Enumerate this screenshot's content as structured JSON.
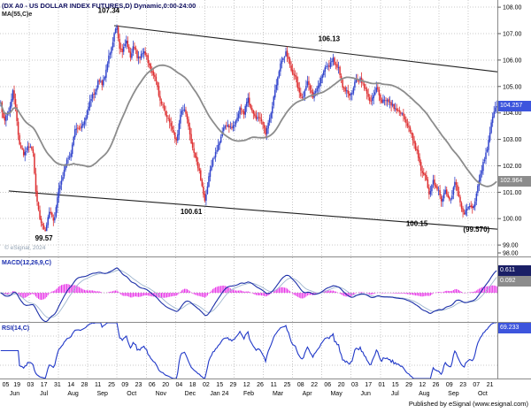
{
  "window": {
    "title": "(DX A0 - US DOLLAR INDEX FUTURES,D) Dynamic,0:00-24:00",
    "ma_label": "MA(55,C)e",
    "copyright": "© eSignal, 2024",
    "footer": "Published by eSignal (www.esignal.com)"
  },
  "panels": {
    "macd_label": "MACD(12,26,9,C)",
    "rsi_label": "RSI(14,C)"
  },
  "tags": {
    "last_price": "104.257",
    "ma_value": "102.964",
    "macd_value": "0.611",
    "macd_signal_value": "0.092",
    "rsi_value": "69.233"
  },
  "colors": {
    "up": "#3144cc",
    "down": "#de3032",
    "ma": "#8c8c8c",
    "trendline": "#222222",
    "grid": "#c8c8c8",
    "separator": "#8a8a8a",
    "macd_line": "#1c2fa8",
    "macd_signal": "#9fb6cf",
    "macd_hist": "#e832e8",
    "rsi": "#2038c8",
    "tag_price_bg": "#3d55dd",
    "tag_ma_bg": "#8c8c8c",
    "tag_macd_bg": "#1a1f66",
    "tag_signal_bg": "#8c8c8c",
    "tag_rsi_bg": "#3d55dd"
  },
  "chart_data": {
    "type": "candlestick",
    "symbol": "DX A0 - US DOLLAR INDEX FUTURES",
    "timeframe": "D",
    "session": "Dynamic,0:00-24:00",
    "ylim": [
      98.57,
      108.27
    ],
    "days_total": 368,
    "price_axis_ticks": [
      "108.00",
      "107.00",
      "106.00",
      "105.00",
      "104.00",
      "103.00",
      "102.00",
      "101.00",
      "100.00",
      "99.00",
      "98.00"
    ],
    "date_ticks": [
      "05",
      "19",
      "03",
      "17",
      "31",
      "14",
      "28",
      "11",
      "25",
      "09",
      "23",
      "06",
      "20",
      "04",
      "18",
      "02",
      "15",
      "29",
      "12",
      "26",
      "11",
      "25",
      "08",
      "22",
      "06",
      "20",
      "03",
      "17",
      "01",
      "15",
      "29",
      "12",
      "26",
      "09",
      "23",
      "07",
      "21"
    ],
    "month_labels": [
      "Jun",
      "Jul",
      "Aug",
      "Sep",
      "Oct",
      "Nov",
      "Dec",
      "Jan 24",
      "Feb",
      "Mar",
      "Apr",
      "May",
      "Jun",
      "Jul",
      "Aug",
      "Sep",
      "Oct"
    ],
    "price_path": [
      [
        0,
        104.3
      ],
      [
        3,
        103.7
      ],
      [
        6,
        104.1
      ],
      [
        9,
        104.8
      ],
      [
        13,
        103.2
      ],
      [
        17,
        102.3
      ],
      [
        20,
        102.9
      ],
      [
        24,
        102.4
      ],
      [
        26,
        101.0
      ],
      [
        29,
        100.1
      ],
      [
        33,
        99.6
      ],
      [
        36,
        100.4
      ],
      [
        39,
        100.0
      ],
      [
        43,
        101.0
      ],
      [
        47,
        101.8
      ],
      [
        51,
        102.4
      ],
      [
        55,
        103.3
      ],
      [
        59,
        103.5
      ],
      [
        63,
        104.0
      ],
      [
        65,
        104.3
      ],
      [
        69,
        104.8
      ],
      [
        72,
        105.3
      ],
      [
        75,
        105.0
      ],
      [
        79,
        105.8
      ],
      [
        82,
        106.5
      ],
      [
        86,
        107.3
      ],
      [
        88,
        106.6
      ],
      [
        90,
        106.4
      ],
      [
        93,
        106.9
      ],
      [
        96,
        106.2
      ],
      [
        98,
        106.6
      ],
      [
        101,
        106.0
      ],
      [
        105,
        106.4
      ],
      [
        108,
        106.1
      ],
      [
        111,
        105.8
      ],
      [
        115,
        105.0
      ],
      [
        118,
        104.5
      ],
      [
        121,
        104.2
      ],
      [
        124,
        103.8
      ],
      [
        126,
        103.5
      ],
      [
        130,
        103.1
      ],
      [
        133,
        103.9
      ],
      [
        136,
        104.2
      ],
      [
        139,
        103.6
      ],
      [
        141,
        103.0
      ],
      [
        144,
        102.5
      ],
      [
        147,
        101.8
      ],
      [
        149,
        101.1
      ],
      [
        151,
        100.7
      ],
      [
        154,
        101.5
      ],
      [
        157,
        102.2
      ],
      [
        160,
        102.6
      ],
      [
        164,
        103.3
      ],
      [
        167,
        103.5
      ],
      [
        170,
        103.4
      ],
      [
        173,
        103.6
      ],
      [
        177,
        104.2
      ],
      [
        180,
        104.0
      ],
      [
        183,
        104.6
      ],
      [
        187,
        104.1
      ],
      [
        190,
        103.9
      ],
      [
        193,
        103.8
      ],
      [
        196,
        103.2
      ],
      [
        200,
        104.0
      ],
      [
        204,
        105.0
      ],
      [
        208,
        106.0
      ],
      [
        211,
        106.3
      ],
      [
        215,
        105.6
      ],
      [
        219,
        105.0
      ],
      [
        223,
        104.7
      ],
      [
        227,
        105.0
      ],
      [
        231,
        104.6
      ],
      [
        235,
        105.0
      ],
      [
        239,
        105.5
      ],
      [
        243,
        105.9
      ],
      [
        246,
        106.1
      ],
      [
        250,
        105.5
      ],
      [
        254,
        104.9
      ],
      [
        258,
        104.5
      ],
      [
        262,
        105.1
      ],
      [
        266,
        105.4
      ],
      [
        270,
        104.9
      ],
      [
        274,
        104.5
      ],
      [
        278,
        104.8
      ],
      [
        282,
        104.3
      ],
      [
        286,
        104.6
      ],
      [
        290,
        104.3
      ],
      [
        294,
        104.1
      ],
      [
        298,
        103.8
      ],
      [
        302,
        103.5
      ],
      [
        306,
        102.8
      ],
      [
        310,
        102.2
      ],
      [
        314,
        101.5
      ],
      [
        317,
        100.9
      ],
      [
        320,
        101.4
      ],
      [
        323,
        101.0
      ],
      [
        326,
        100.7
      ],
      [
        329,
        101.2
      ],
      [
        333,
        100.7
      ],
      [
        336,
        101.3
      ],
      [
        339,
        100.7
      ],
      [
        343,
        100.15
      ],
      [
        346,
        100.6
      ],
      [
        349,
        100.4
      ],
      [
        351,
        100.8
      ],
      [
        354,
        101.4
      ],
      [
        357,
        102.1
      ],
      [
        360,
        102.8
      ],
      [
        363,
        103.5
      ],
      [
        365,
        104.0
      ],
      [
        367,
        104.26
      ]
    ],
    "annotations": [
      {
        "text": "107.34",
        "day": 80,
        "price": 107.78
      },
      {
        "text": "106.13",
        "day": 243,
        "price": 106.72
      },
      {
        "text": "100.61",
        "day": 141,
        "price": 100.18
      },
      {
        "text": "100.15",
        "day": 308,
        "price": 99.72
      },
      {
        "text": "99.57",
        "day": 32,
        "price": 99.18
      },
      {
        "text": "(99.570)",
        "day": 352,
        "price": 99.5
      }
    ],
    "trendlines": [
      {
        "from": [
          84,
          107.3
        ],
        "to": [
          368,
          105.55
        ]
      },
      {
        "from": [
          6,
          101.05
        ],
        "to": [
          368,
          99.6
        ]
      }
    ],
    "indicators": {
      "ma_period": 55,
      "macd": [
        12,
        26,
        9
      ],
      "rsi_period": 14,
      "rsi_guides": [
        70,
        30
      ],
      "last_price": 104.257,
      "ma_value": 102.964,
      "macd_value": 0.611,
      "macd_signal_value": 0.092,
      "rsi_value": 69.233
    }
  }
}
